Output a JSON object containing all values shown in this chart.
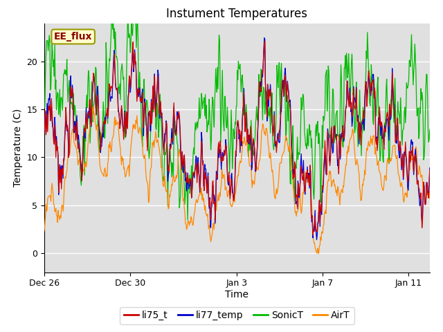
{
  "title": "Instument Temperatures",
  "xlabel": "Time",
  "ylabel": "Temperature (C)",
  "ylim": [
    -2,
    24
  ],
  "colors": {
    "li75_t": "#cc0000",
    "li77_temp": "#0000cc",
    "SonicT": "#00bb00",
    "AirT": "#ff8800"
  },
  "legend_labels": [
    "li75_t",
    "li77_temp",
    "SonicT",
    "AirT"
  ],
  "xtick_labels": [
    "Dec 26",
    "Dec 30",
    "Jan 3",
    "Jan 7",
    "Jan 11"
  ],
  "xtick_positions": [
    0,
    4,
    9,
    13,
    17
  ],
  "annotation_text": "EE_flux",
  "bg_color": "#ffffff",
  "plot_bg_color": "#e0e0e0",
  "grid_color": "#ffffff",
  "title_fontsize": 12,
  "axis_label_fontsize": 10,
  "tick_fontsize": 9,
  "legend_fontsize": 10
}
